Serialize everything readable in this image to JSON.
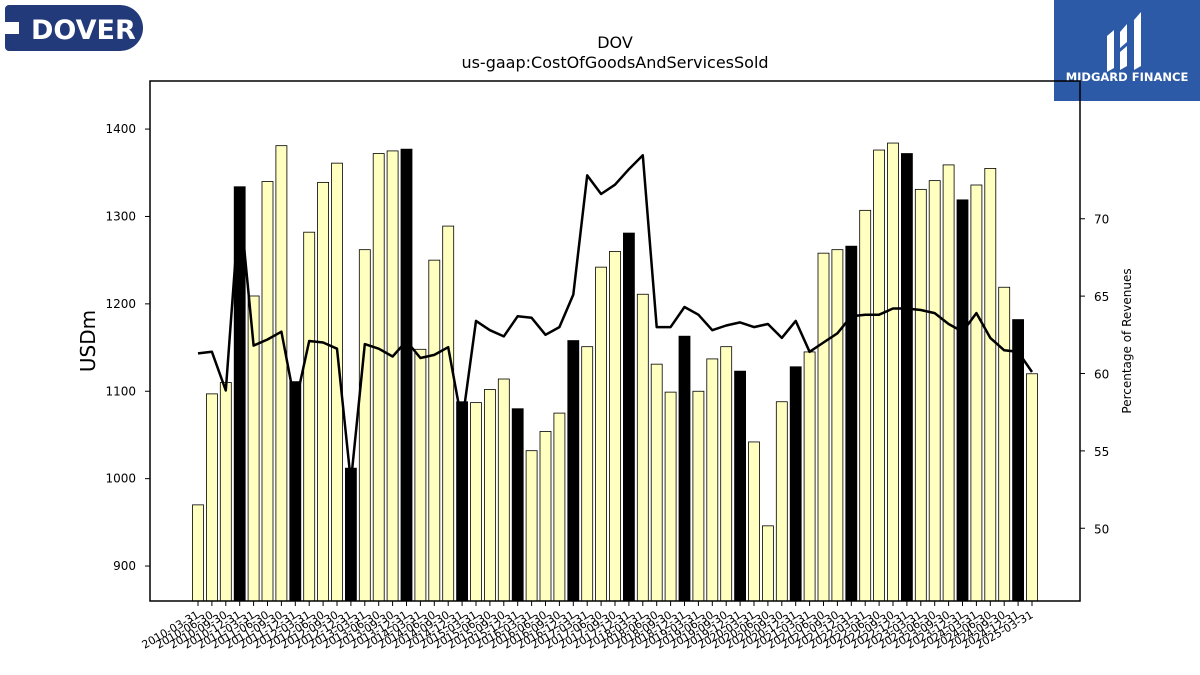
{
  "logos": {
    "left_text": "DOVER",
    "right_text": "MIDGARD FINANCE"
  },
  "colors": {
    "bar_default": "#ffffc0",
    "bar_highlight": "#000000",
    "line": "#000000",
    "logo_left_bg": "#233a7a",
    "logo_right_bg": "#2d5aa6"
  },
  "chart_data": {
    "type": "bar",
    "title": "DOV",
    "subtitle": "us-gaap:CostOfGoodsAndServicesSold",
    "ylabel": "USDm",
    "ylabel_right": "Percentage of Revenues",
    "ylim": [
      860,
      1455
    ],
    "ylim_right": [
      45.3,
      78.9
    ],
    "yticks": [
      900,
      1000,
      1100,
      1200,
      1300,
      1400
    ],
    "yticks_right": [
      50,
      55,
      60,
      65,
      70
    ],
    "categories": [
      "2010-03-31",
      "2010-06-30",
      "2010-09-30",
      "2010-12-31",
      "2011-03-31",
      "2011-06-30",
      "2011-09-30",
      "2011-12-31",
      "2012-03-31",
      "2012-06-30",
      "2012-09-30",
      "2012-12-31",
      "2013-03-31",
      "2013-06-30",
      "2013-09-30",
      "2013-12-31",
      "2014-03-31",
      "2014-06-30",
      "2014-09-30",
      "2014-12-31",
      "2015-03-31",
      "2015-06-30",
      "2015-09-30",
      "2015-12-31",
      "2016-03-31",
      "2016-06-30",
      "2016-09-30",
      "2016-12-31",
      "2017-03-31",
      "2017-06-30",
      "2017-09-30",
      "2017-12-31",
      "2018-03-31",
      "2018-06-30",
      "2018-09-30",
      "2018-12-31",
      "2019-03-31",
      "2019-06-30",
      "2019-09-30",
      "2019-12-31",
      "2020-03-31",
      "2020-06-30",
      "2020-09-30",
      "2020-12-31",
      "2021-03-31",
      "2021-06-30",
      "2021-09-30",
      "2021-12-31",
      "2022-03-31",
      "2022-06-30",
      "2022-09-30",
      "2022-12-31",
      "2023-03-31",
      "2023-06-30",
      "2023-09-30",
      "2023-12-31",
      "2024-03-31",
      "2024-06-30",
      "2024-09-30",
      "2024-12-31",
      "2025-03-31"
    ],
    "series": [
      {
        "type": "bar",
        "axis": "left",
        "values": [
          970,
          1097,
          1110,
          1334,
          1209,
          1340,
          1381,
          1111,
          1282,
          1339,
          1361,
          1012,
          1262,
          1372,
          1375,
          1377,
          1148,
          1250,
          1289,
          1088,
          1087,
          1102,
          1114,
          1080,
          1032,
          1054,
          1075,
          1158,
          1151,
          1242,
          1260,
          1281,
          1211,
          1131,
          1099,
          1163,
          1100,
          1137,
          1151,
          1123,
          1042,
          946,
          1088,
          1128,
          1145,
          1258,
          1262,
          1266,
          1307,
          1376,
          1384,
          1372,
          1331,
          1341,
          1359,
          1319,
          1336,
          1355,
          1219,
          1182,
          1120
        ],
        "highlight": [
          false,
          false,
          false,
          true,
          false,
          false,
          false,
          true,
          false,
          false,
          false,
          true,
          false,
          false,
          false,
          true,
          false,
          false,
          false,
          true,
          false,
          false,
          false,
          true,
          false,
          false,
          false,
          true,
          false,
          false,
          false,
          true,
          false,
          false,
          false,
          true,
          false,
          false,
          false,
          true,
          false,
          false,
          false,
          true,
          false,
          false,
          false,
          true,
          false,
          false,
          false,
          true,
          false,
          false,
          false,
          true,
          false,
          false,
          false,
          true,
          false
        ]
      },
      {
        "type": "line",
        "axis": "right",
        "values": [
          61.3,
          61.4,
          58.9,
          71.1,
          61.8,
          62.2,
          62.7,
          58.0,
          62.1,
          62.0,
          61.6,
          53.0,
          61.9,
          61.6,
          61.1,
          62.1,
          61.0,
          61.2,
          61.7,
          56.8,
          63.4,
          62.8,
          62.4,
          63.7,
          63.6,
          62.5,
          63.0,
          65.1,
          72.8,
          71.6,
          72.2,
          73.2,
          74.1,
          63.0,
          63.0,
          64.3,
          63.8,
          62.8,
          63.1,
          63.3,
          63.0,
          63.2,
          62.3,
          63.4,
          61.4,
          62.0,
          62.6,
          63.7,
          63.8,
          63.8,
          64.2,
          64.2,
          64.1,
          63.9,
          63.2,
          62.7,
          63.9,
          62.3,
          61.5,
          61.4,
          60.1
        ]
      }
    ],
    "grid": false,
    "legend": "none"
  }
}
